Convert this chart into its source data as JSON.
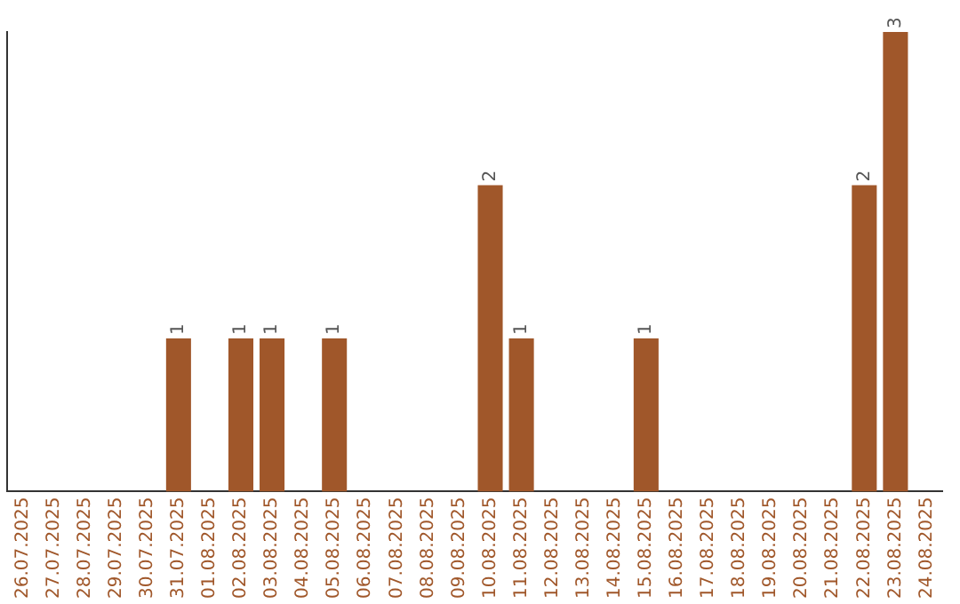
{
  "chart_data": {
    "type": "bar",
    "categories": [
      "26.07.2025",
      "27.07.2025",
      "28.07.2025",
      "29.07.2025",
      "30.07.2025",
      "31.07.2025",
      "01.08.2025",
      "02.08.2025",
      "03.08.2025",
      "04.08.2025",
      "05.08.2025",
      "06.08.2025",
      "07.08.2025",
      "08.08.2025",
      "09.08.2025",
      "10.08.2025",
      "11.08.2025",
      "12.08.2025",
      "13.08.2025",
      "14.08.2025",
      "15.08.2025",
      "16.08.2025",
      "17.08.2025",
      "18.08.2025",
      "19.08.2025",
      "20.08.2025",
      "21.08.2025",
      "22.08.2025",
      "23.08.2025",
      "24.08.2025"
    ],
    "values": [
      0,
      0,
      0,
      0,
      0,
      1,
      0,
      1,
      1,
      0,
      1,
      0,
      0,
      0,
      0,
      2,
      1,
      0,
      0,
      0,
      1,
      0,
      0,
      0,
      0,
      0,
      0,
      2,
      3,
      0
    ],
    "value_labels": [
      null,
      null,
      null,
      null,
      null,
      "1",
      null,
      "1",
      "1",
      null,
      "1",
      null,
      null,
      null,
      null,
      "2",
      "1",
      null,
      null,
      null,
      "1",
      null,
      null,
      null,
      null,
      null,
      null,
      "2",
      "3",
      null
    ],
    "color": "#a0572a",
    "grid": false,
    "legend": false
  }
}
